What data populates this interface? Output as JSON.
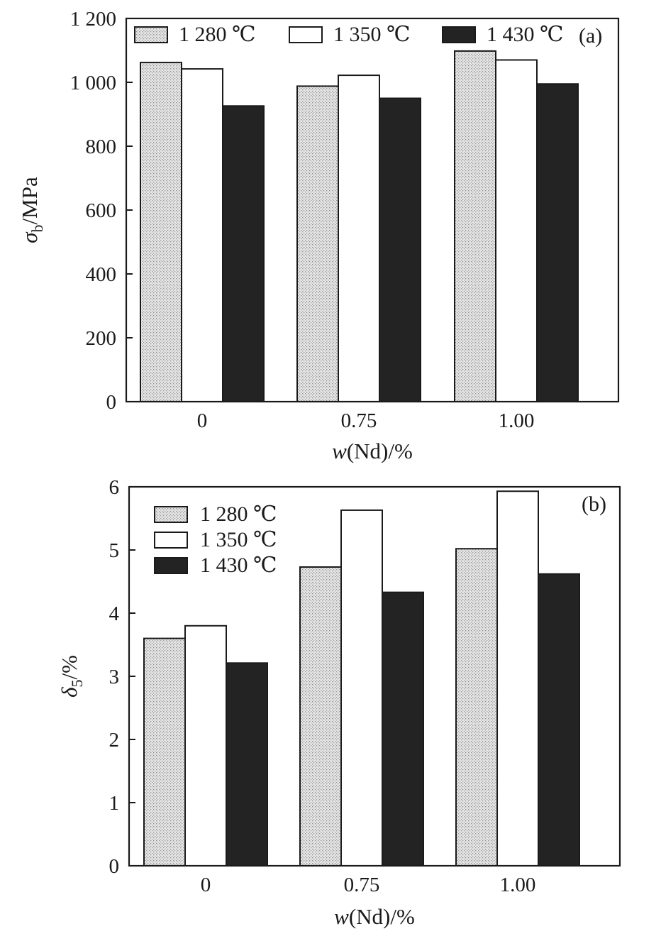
{
  "chart_data": [
    {
      "type": "bar",
      "panel_label": "(a)",
      "categories": [
        "0",
        "0.75",
        "1.00"
      ],
      "series": [
        {
          "name": "1 280 ℃",
          "values": [
            1062,
            988,
            1098
          ]
        },
        {
          "name": "1 350 ℃",
          "values": [
            1042,
            1022,
            1070
          ]
        },
        {
          "name": "1 430 ℃",
          "values": [
            926,
            950,
            995
          ]
        }
      ],
      "xlabel_prefix": "w",
      "xlabel_suffix": "(Nd)/%",
      "ylabel_symbol": "σ",
      "ylabel_sub": "b",
      "ylabel_suffix": "/MPa",
      "ylim": [
        0,
        1200
      ],
      "yticks": [
        0,
        200,
        400,
        600,
        800,
        1000,
        1200
      ],
      "ytick_labels": [
        "0",
        "200",
        "400",
        "600",
        "800",
        "1 000",
        "1 200"
      ],
      "legend_position": "top",
      "grid": false
    },
    {
      "type": "bar",
      "panel_label": "(b)",
      "categories": [
        "0",
        "0.75",
        "1.00"
      ],
      "series": [
        {
          "name": "1 280 ℃",
          "values": [
            3.6,
            4.73,
            5.02
          ]
        },
        {
          "name": "1 350 ℃",
          "values": [
            3.8,
            5.63,
            5.93
          ]
        },
        {
          "name": "1 430 ℃",
          "values": [
            3.21,
            4.33,
            4.62
          ]
        }
      ],
      "xlabel_prefix": "w",
      "xlabel_suffix": "(Nd)/%",
      "ylabel_symbol": "δ",
      "ylabel_sub": "5",
      "ylabel_suffix": "/%",
      "ylim": [
        0,
        6
      ],
      "yticks": [
        0,
        1,
        2,
        3,
        4,
        5,
        6
      ],
      "ytick_labels": [
        "0",
        "1",
        "2",
        "3",
        "4",
        "5",
        "6"
      ],
      "legend_position": "top-left",
      "grid": false
    }
  ],
  "colors": {
    "series_fill": [
      "url(#dots)",
      "#ffffff",
      "#232323"
    ],
    "outline": "#1a1a1a"
  }
}
